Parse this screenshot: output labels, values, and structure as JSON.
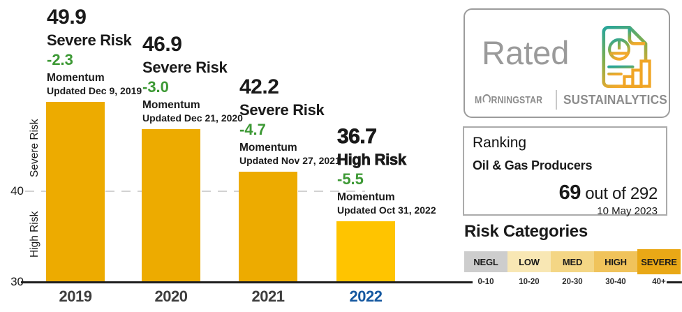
{
  "chart_data": {
    "type": "bar",
    "categories": [
      "2019",
      "2020",
      "2021",
      "2022"
    ],
    "values": [
      49.9,
      46.9,
      42.2,
      36.7
    ],
    "ylim": [
      30,
      50
    ],
    "y_axis": {
      "zone_labels": {
        "upper": "Severe Risk",
        "lower": "High Risk"
      },
      "ticks": {
        "t40": "40",
        "t30": "30"
      },
      "gridline_40": "dashed"
    },
    "bars": [
      {
        "year": "2019",
        "score": "49.9",
        "risk_category": "Severe Risk",
        "momentum": "-2.3",
        "momentum_label": "Momentum",
        "updated": "Updated Dec 9, 2019",
        "highlighted": false
      },
      {
        "year": "2020",
        "score": "46.9",
        "risk_category": "Severe Risk",
        "momentum": "-3.0",
        "momentum_label": "Momentum",
        "updated": "Updated Dec 21, 2020",
        "highlighted": false
      },
      {
        "year": "2021",
        "score": "42.2",
        "risk_category": "Severe Risk",
        "momentum": "-4.7",
        "momentum_label": "Momentum",
        "updated": "Updated Nov 27, 2021",
        "highlighted": false
      },
      {
        "year": "2022",
        "score": "36.7",
        "risk_category": "High Risk",
        "momentum": "-5.5",
        "momentum_label": "Momentum",
        "updated": "Updated Oct 31, 2022",
        "highlighted": true
      }
    ]
  },
  "rated_badge": {
    "label": "Rated",
    "icon": "esg-report-document-icon",
    "morningstar_m": "M",
    "morningstar_rest": "RNINGSTAR",
    "sustainalytics": "SUSTAINALYTICS"
  },
  "ranking": {
    "title": "Ranking",
    "group": "Oil & Gas Producers",
    "rank": "69",
    "out_of": " out of 292",
    "as_of_date": "10 May 2023"
  },
  "risk_categories": {
    "title": "Risk Categories",
    "items": [
      {
        "label": "NEGL",
        "range": "0-10",
        "color": "#CDCDCD"
      },
      {
        "label": "LOW",
        "range": "10-20",
        "color": "#F8E7B4"
      },
      {
        "label": "MED",
        "range": "20-30",
        "color": "#F4D685"
      },
      {
        "label": "HIGH",
        "range": "30-40",
        "color": "#F0C35B"
      },
      {
        "label": "SEVERE",
        "range": "40+",
        "color": "#E9A816"
      }
    ]
  },
  "colors": {
    "bar": "#EDAB00",
    "bar_highlight": "#FFC400",
    "momentum_green": "#3D9935",
    "year_label": "#3D3D3D",
    "year_highlight": "#1558A0"
  }
}
